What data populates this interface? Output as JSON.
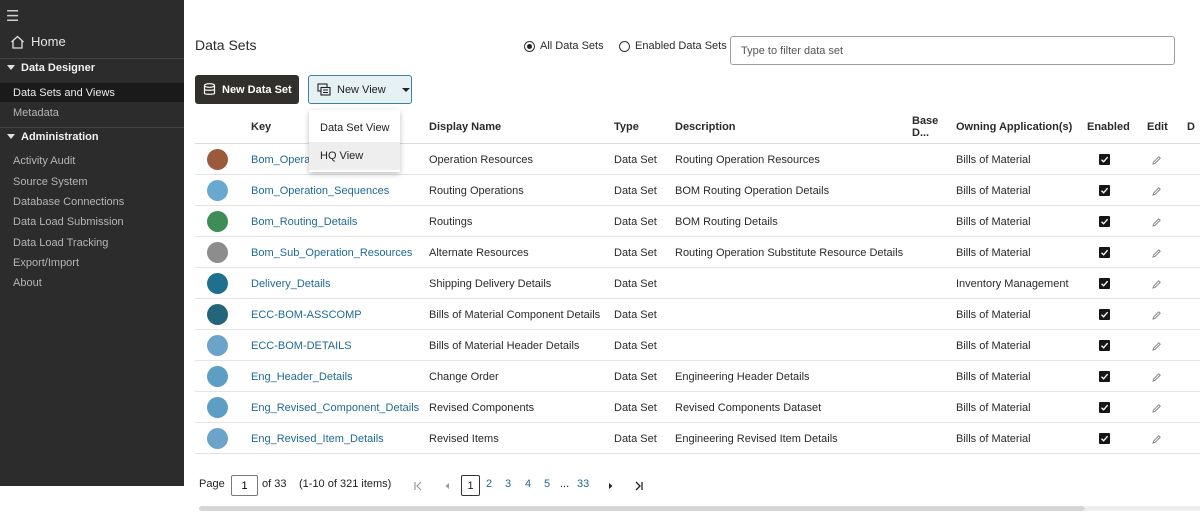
{
  "sidebar": {
    "home": "Home",
    "sections": [
      {
        "title": "Data Designer",
        "items": [
          "Data Sets and Views",
          "Metadata"
        ]
      },
      {
        "title": "Administration",
        "items": [
          "Activity Audit",
          "Source System",
          "Database Connections",
          "Data Load Submission",
          "Data Load Tracking",
          "Export/Import",
          "About"
        ]
      }
    ],
    "active_item": "Data Sets and Views"
  },
  "main": {
    "title": "Data Sets",
    "radio_all": "All Data Sets",
    "radio_enabled": "Enabled Data Sets",
    "filter_placeholder": "Type to filter data set",
    "new_data_set_button": "New Data Set",
    "new_view_button": "New View"
  },
  "menu": {
    "items": [
      "Data Set View",
      "HQ View"
    ]
  },
  "table": {
    "columns": {
      "key": "Key",
      "display_name": "Display Name",
      "type": "Type",
      "description": "Description",
      "base_d": "Base D...",
      "owning_app": "Owning Application(s)",
      "enabled": "Enabled",
      "edit": "Edit",
      "extra": "D"
    },
    "rows": [
      {
        "key": "Bom_Operation_Resources",
        "display_name": "Operation Resources",
        "type": "Data Set",
        "description": "Routing Operation Resources",
        "owning_app": "Bills of Material",
        "icon_color": "#9b5a3c"
      },
      {
        "key": "Bom_Operation_Sequences",
        "display_name": "Routing Operations",
        "type": "Data Set",
        "description": "BOM Routing Operation Details",
        "owning_app": "Bills of Material",
        "icon_color": "#6aa9cf"
      },
      {
        "key": "Bom_Routing_Details",
        "display_name": "Routings",
        "type": "Data Set",
        "description": "BOM Routing Details",
        "owning_app": "Bills of Material",
        "icon_color": "#3e8d57"
      },
      {
        "key": "Bom_Sub_Operation_Resources",
        "display_name": "Alternate Resources",
        "type": "Data Set",
        "description": "Routing Operation Substitute Resource Details",
        "owning_app": "Bills of Material",
        "icon_color": "#8d8d8d"
      },
      {
        "key": "Delivery_Details",
        "display_name": "Shipping Delivery Details",
        "type": "Data Set",
        "description": "",
        "owning_app": "Inventory Management",
        "icon_color": "#1f6f8f"
      },
      {
        "key": "ECC-BOM-ASSCOMP",
        "display_name": "Bills of Material Component Details",
        "type": "Data Set",
        "description": "",
        "owning_app": "Bills of Material",
        "icon_color": "#236679"
      },
      {
        "key": "ECC-BOM-DETAILS",
        "display_name": "Bills of Material Header Details",
        "type": "Data Set",
        "description": "",
        "owning_app": "Bills of Material",
        "icon_color": "#6ba4c8"
      },
      {
        "key": "Eng_Header_Details",
        "display_name": "Change Order",
        "type": "Data Set",
        "description": "Engineering Header Details",
        "owning_app": "Bills of Material",
        "icon_color": "#5e9dc4"
      },
      {
        "key": "Eng_Revised_Component_Details",
        "display_name": "Revised Components",
        "type": "Data Set",
        "description": "Revised Components Dataset",
        "owning_app": "Bills of Material",
        "icon_color": "#5e9dc4"
      },
      {
        "key": "Eng_Revised_Item_Details",
        "display_name": "Revised Items",
        "type": "Data Set",
        "description": "Engineering Revised Item Details",
        "owning_app": "Bills of Material",
        "icon_color": "#6ba4c8"
      }
    ]
  },
  "pagination": {
    "page_label": "Page",
    "current_page": "1",
    "of_label": "of 33",
    "range_label": "(1-10 of 321 items)",
    "pages": [
      "2",
      "3",
      "4",
      "5"
    ],
    "ellipsis": "...",
    "last_page": "33"
  }
}
